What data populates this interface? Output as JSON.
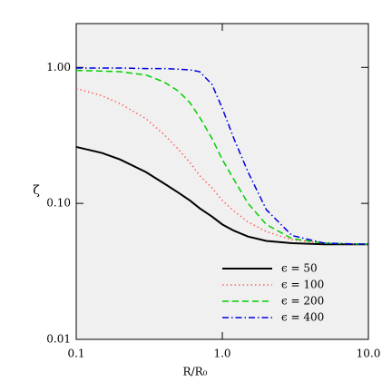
{
  "chart_data": {
    "type": "line",
    "x_label": "R/R₀",
    "y_label": "ζ",
    "xscale": "log",
    "yscale": "log",
    "xlim": [
      0.1,
      10
    ],
    "ylim": [
      0.01,
      2.1
    ],
    "xticks": [
      0.1,
      {
        "value": 1,
        "label": "1.0"
      },
      {
        "value": 10,
        "label": "10.0"
      }
    ],
    "yticks": [
      {
        "value": 0.01,
        "label": "0.01"
      },
      {
        "value": 0.1,
        "label": "0.10"
      },
      {
        "value": 1,
        "label": "1.00"
      }
    ],
    "legend": "lower right",
    "background": "#f0f0f0",
    "x": [
      0.1,
      0.15,
      0.2,
      0.3,
      0.4,
      0.5,
      0.6,
      0.7,
      0.85,
      1.0,
      1.2,
      1.5,
      2,
      3,
      5,
      10
    ],
    "series": [
      {
        "name": "ϵ = 50",
        "color": "#000000",
        "linestyle": "solid",
        "values": [
          0.26,
          0.235,
          0.21,
          0.17,
          0.14,
          0.12,
          0.105,
          0.092,
          0.08,
          0.07,
          0.063,
          0.057,
          0.053,
          0.051,
          0.05,
          0.05
        ]
      },
      {
        "name": "ϵ = 100",
        "color": "#ff6060",
        "linestyle": "dotted",
        "values": [
          0.7,
          0.62,
          0.54,
          0.42,
          0.32,
          0.25,
          0.2,
          0.16,
          0.13,
          0.105,
          0.088,
          0.073,
          0.062,
          0.054,
          0.051,
          0.05
        ]
      },
      {
        "name": "ϵ = 200",
        "color": "#00d000",
        "linestyle": "dashed",
        "values": [
          0.95,
          0.94,
          0.93,
          0.88,
          0.78,
          0.67,
          0.55,
          0.43,
          0.3,
          0.21,
          0.15,
          0.1,
          0.07,
          0.055,
          0.051,
          0.05
        ]
      },
      {
        "name": "ϵ = 400",
        "color": "#0000e0",
        "linestyle": "dashdot",
        "values": [
          0.99,
          0.99,
          0.99,
          0.98,
          0.98,
          0.97,
          0.96,
          0.93,
          0.75,
          0.5,
          0.3,
          0.17,
          0.09,
          0.058,
          0.051,
          0.05
        ]
      }
    ]
  }
}
